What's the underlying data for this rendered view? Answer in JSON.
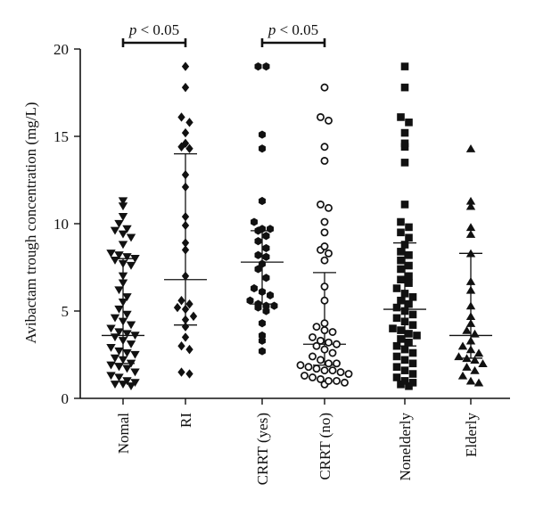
{
  "chart_data": {
    "type": "scatter",
    "ylabel": "Avibactam trough concentration (mg/L)",
    "ylim": [
      0,
      20
    ],
    "yticks": [
      0,
      5,
      10,
      15,
      20
    ],
    "categories": [
      "Nomal",
      "RI",
      "CRRT (yes)",
      "CRRT (no)",
      "Nonelderly",
      "Elderly"
    ],
    "series": [
      {
        "category": "Nomal",
        "marker": "triangle-down",
        "median": 3.6,
        "iqr": [
          2.0,
          8.0
        ],
        "values": [
          11.3,
          11.0,
          10.4,
          10.0,
          9.7,
          9.6,
          9.4,
          9.2,
          8.8,
          8.3,
          8.2,
          8.1,
          8.0,
          7.9,
          7.7,
          7.6,
          7.0,
          6.6,
          6.2,
          5.8,
          5.5,
          5.1,
          4.8,
          4.6,
          4.4,
          4.2,
          4.0,
          3.8,
          3.7,
          3.6,
          3.5,
          3.3,
          3.1,
          2.9,
          2.7,
          2.6,
          2.5,
          2.3,
          2.2,
          2.0,
          1.9,
          1.8,
          1.7,
          1.5,
          1.3,
          1.2,
          1.0,
          0.9,
          0.8,
          0.8,
          0.7
        ]
      },
      {
        "category": "RI",
        "marker": "diamond",
        "median": 6.8,
        "iqr": [
          4.2,
          14.0
        ],
        "values": [
          19.0,
          17.8,
          16.1,
          15.8,
          15.2,
          14.6,
          14.4,
          14.3,
          12.8,
          12.1,
          10.4,
          9.9,
          8.9,
          8.5,
          7.0,
          5.6,
          5.4,
          5.2,
          5.1,
          4.7,
          4.5,
          4.1,
          3.5,
          3.0,
          2.8,
          1.5,
          1.4
        ]
      },
      {
        "category": "CRRT (yes)",
        "marker": "hexagon",
        "median": 7.8,
        "iqr": [
          5.4,
          9.6
        ],
        "values": [
          19.0,
          19.0,
          15.1,
          14.3,
          11.3,
          10.1,
          9.7,
          9.7,
          9.6,
          9.3,
          9.0,
          8.6,
          8.2,
          8.1,
          7.7,
          7.4,
          6.9,
          6.3,
          6.1,
          5.9,
          5.6,
          5.4,
          5.3,
          5.3,
          5.2,
          5.0,
          4.3,
          3.6,
          3.3,
          2.7
        ]
      },
      {
        "category": "CRRT (no)",
        "marker": "circle-open",
        "median": 3.1,
        "iqr": [
          1.9,
          7.2
        ],
        "values": [
          17.8,
          16.1,
          15.9,
          14.4,
          13.6,
          11.1,
          10.9,
          10.1,
          9.5,
          8.7,
          8.5,
          8.3,
          7.9,
          6.4,
          5.6,
          4.3,
          4.1,
          3.9,
          3.8,
          3.5,
          3.3,
          3.2,
          3.1,
          3.0,
          2.8,
          2.6,
          2.4,
          2.2,
          2.0,
          2.0,
          1.9,
          1.8,
          1.7,
          1.6,
          1.6,
          1.5,
          1.4,
          1.3,
          1.2,
          1.1,
          1.0,
          1.0,
          0.9,
          0.8
        ]
      },
      {
        "category": "Nonelderly",
        "marker": "square",
        "median": 5.1,
        "iqr": [
          3.0,
          8.9
        ],
        "values": [
          19.0,
          17.8,
          16.1,
          15.8,
          15.2,
          14.6,
          14.4,
          13.5,
          11.1,
          10.1,
          9.8,
          9.5,
          9.2,
          8.8,
          8.4,
          8.2,
          7.9,
          7.6,
          7.4,
          7.0,
          6.8,
          6.6,
          6.3,
          6.0,
          5.8,
          5.6,
          5.4,
          5.2,
          5.0,
          4.8,
          4.6,
          4.4,
          4.2,
          4.0,
          3.9,
          3.7,
          3.6,
          3.4,
          3.2,
          3.0,
          2.8,
          2.6,
          2.4,
          2.2,
          2.0,
          1.8,
          1.6,
          1.4,
          1.2,
          1.0,
          0.9,
          0.8,
          0.7
        ]
      },
      {
        "category": "Elderly",
        "marker": "triangle-up",
        "median": 3.6,
        "iqr": [
          2.3,
          8.3
        ],
        "values": [
          14.3,
          11.3,
          11.0,
          9.8,
          9.4,
          8.3,
          6.7,
          6.2,
          5.3,
          4.7,
          4.3,
          3.9,
          3.7,
          3.3,
          3.0,
          2.8,
          2.6,
          2.4,
          2.3,
          2.2,
          2.0,
          1.8,
          1.6,
          1.3,
          1.0,
          0.9
        ]
      }
    ],
    "significance": [
      {
        "from": "Nomal",
        "to": "RI",
        "p_prefix": "p",
        "p_rest": " < 0.05"
      },
      {
        "from": "CRRT (yes)",
        "to": "CRRT (no)",
        "p_prefix": "p",
        "p_rest": " < 0.05"
      }
    ]
  }
}
